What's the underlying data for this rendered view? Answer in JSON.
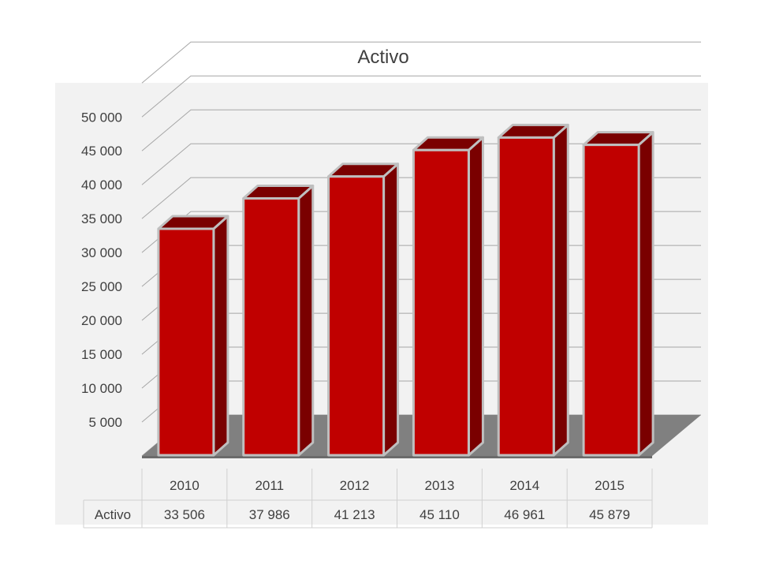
{
  "chart_data": {
    "type": "bar",
    "title": "Activo",
    "categories": [
      "2010",
      "2011",
      "2012",
      "2013",
      "2014",
      "2015"
    ],
    "series": [
      {
        "name": "Activo",
        "values": [
          33506,
          37986,
          41213,
          45110,
          46961,
          45879
        ]
      }
    ],
    "value_labels": [
      "33 506",
      "37 986",
      "41 213",
      "45 110",
      "46 961",
      "45 879"
    ],
    "y_ticks": [
      "5 000",
      "10 000",
      "15 000",
      "20 000",
      "25 000",
      "30 000",
      "35 000",
      "40 000",
      "45 000",
      "50 000"
    ],
    "ylim": [
      0,
      55000
    ],
    "style": "3d-column",
    "grid": true,
    "legend": "none",
    "data_table": true,
    "colors": {
      "bar_front": "#c00000",
      "bar_side": "#7a0000",
      "bar_edge": "#bfbfbf",
      "floor": "#808080",
      "plot_bg": "#f2f2f2",
      "grid": "#a6a6a6"
    }
  }
}
